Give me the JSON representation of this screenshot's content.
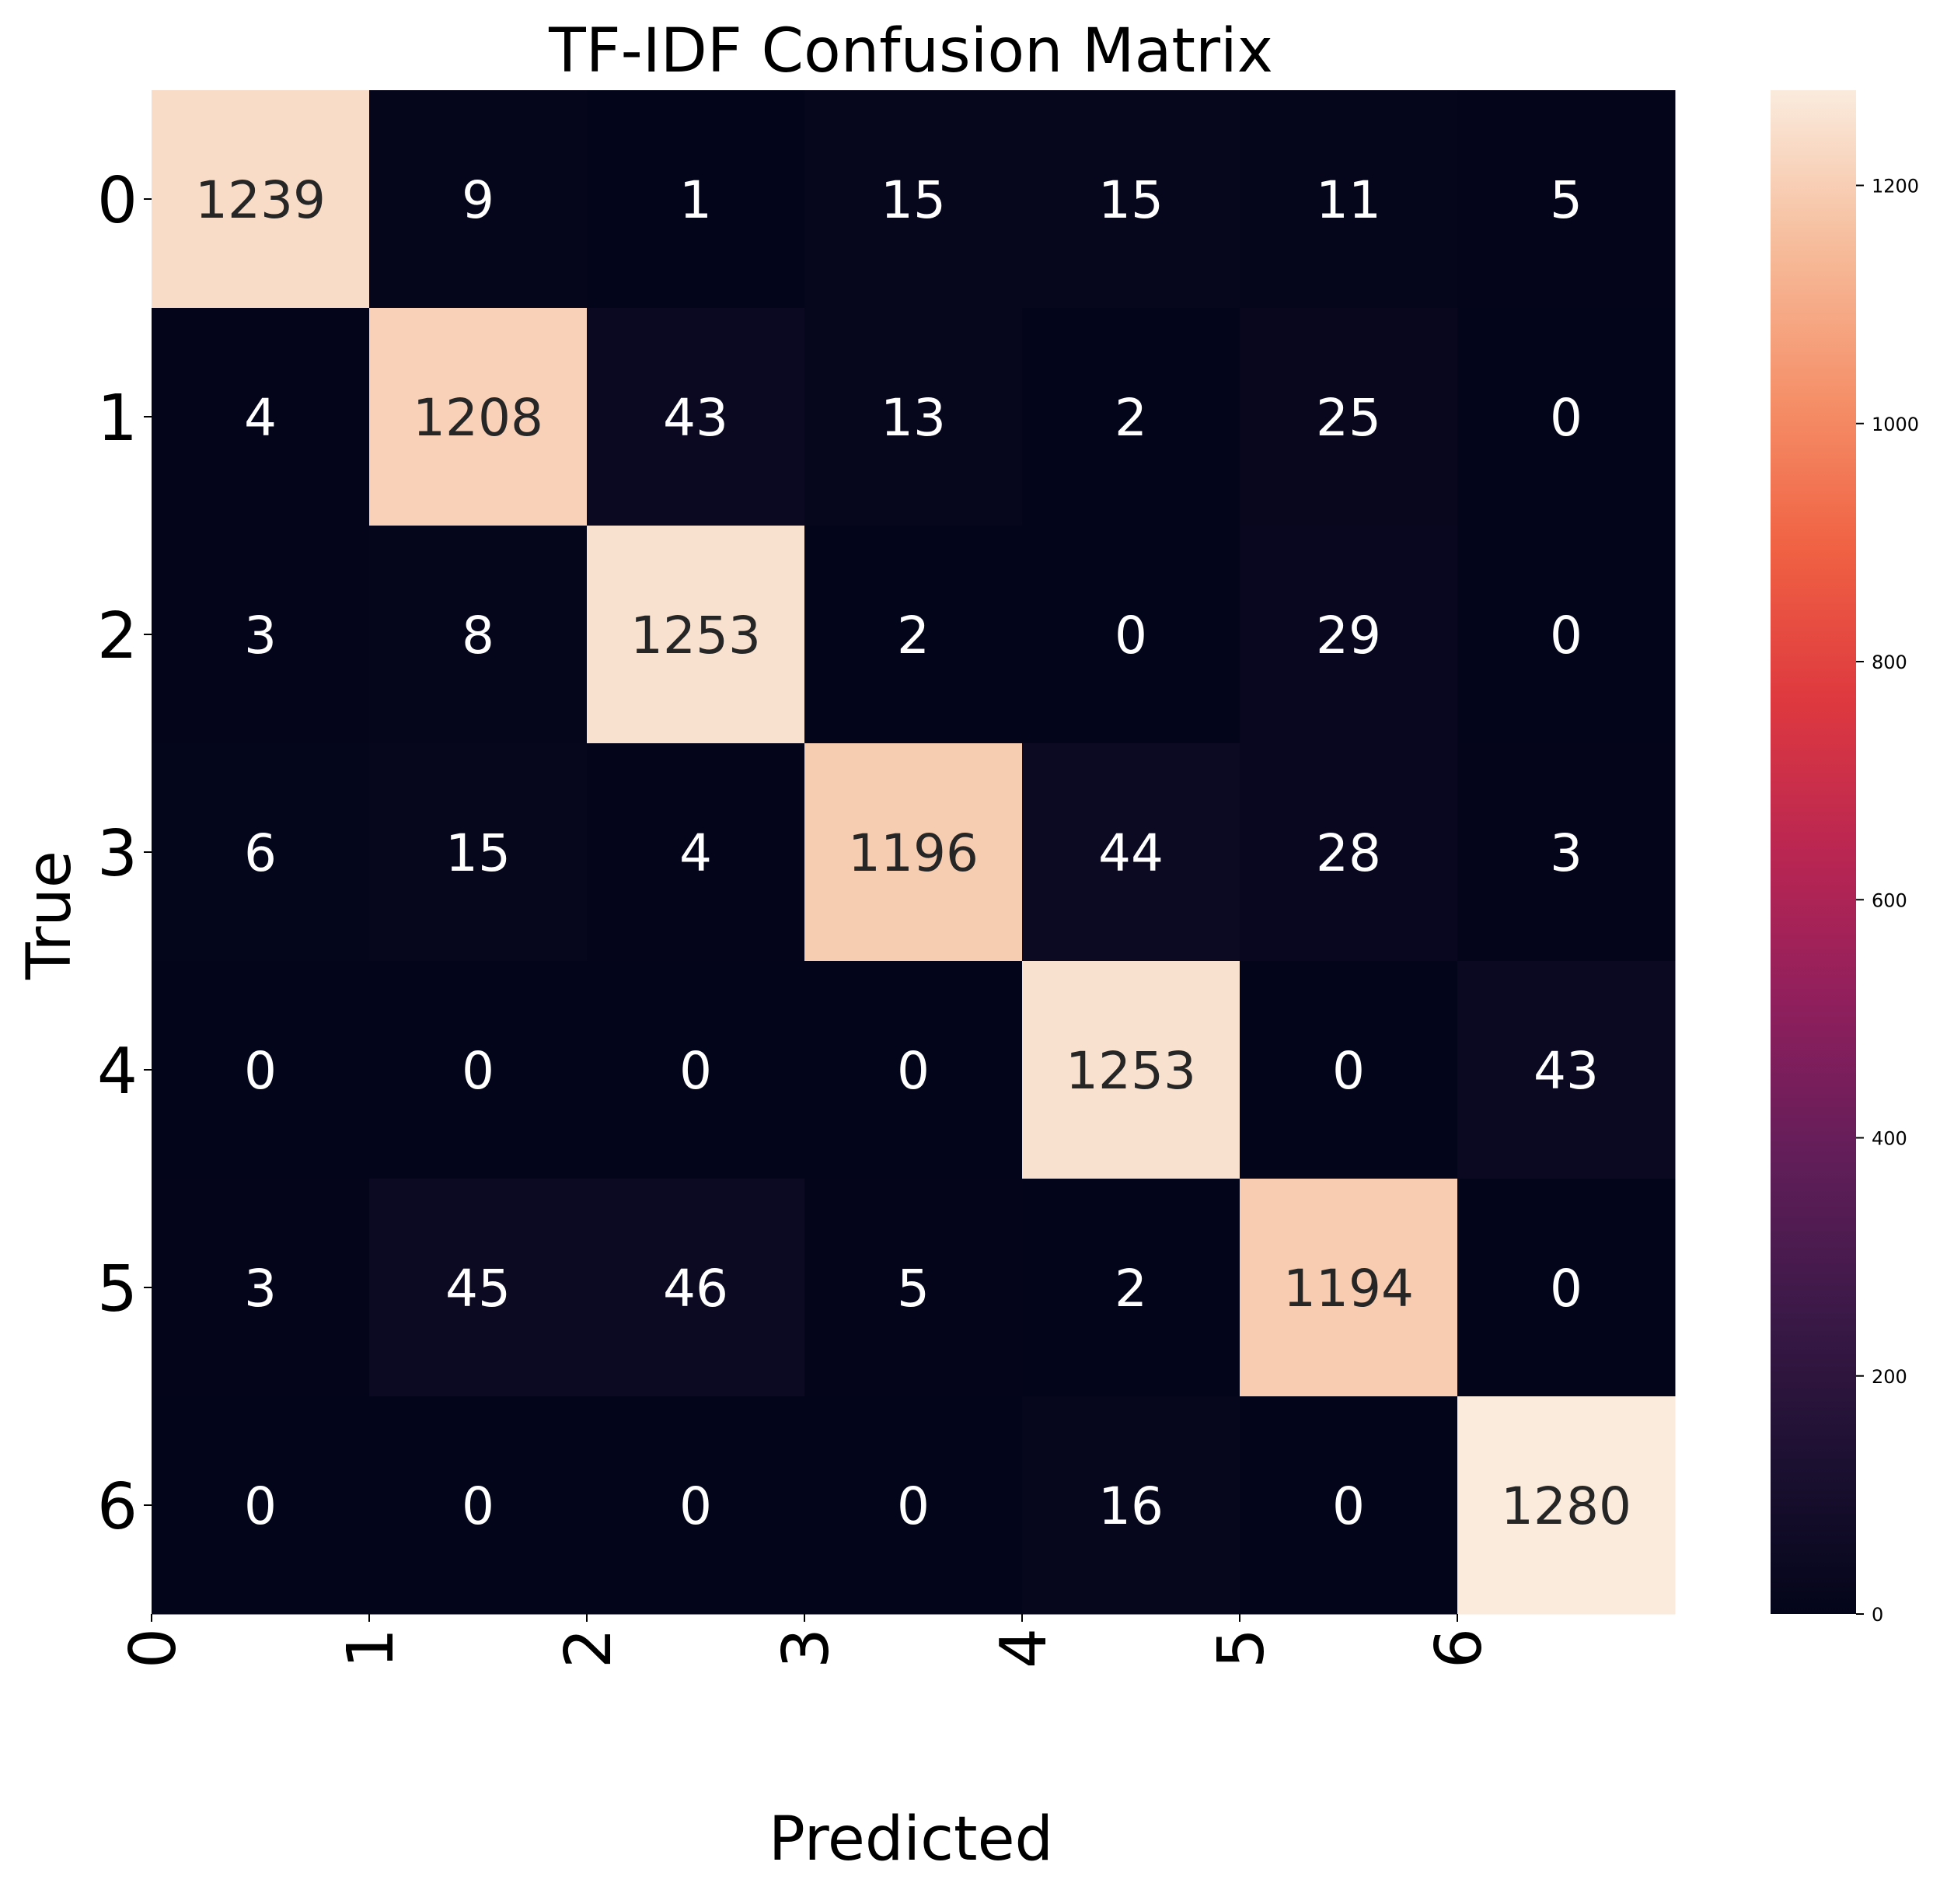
{
  "chart_data": {
    "type": "heatmap",
    "title": "TF-IDF Confusion Matrix",
    "xlabel": "Predicted",
    "ylabel": "True",
    "x_ticks": [
      "0",
      "1",
      "2",
      "3",
      "4",
      "5",
      "6"
    ],
    "y_ticks": [
      "0",
      "1",
      "2",
      "3",
      "4",
      "5",
      "6"
    ],
    "matrix": [
      [
        1239,
        9,
        1,
        15,
        15,
        11,
        5
      ],
      [
        4,
        1208,
        43,
        13,
        2,
        25,
        0
      ],
      [
        3,
        8,
        1253,
        2,
        0,
        29,
        0
      ],
      [
        6,
        15,
        4,
        1196,
        44,
        28,
        3
      ],
      [
        0,
        0,
        0,
        0,
        1253,
        0,
        43
      ],
      [
        3,
        45,
        46,
        5,
        2,
        1194,
        0
      ],
      [
        0,
        0,
        0,
        0,
        16,
        0,
        1280
      ]
    ],
    "colorbar": {
      "min": 0,
      "max": 1280,
      "ticks": [
        "0",
        "200",
        "400",
        "600",
        "800",
        "1000",
        "1200"
      ],
      "colormap": "rocket"
    }
  }
}
